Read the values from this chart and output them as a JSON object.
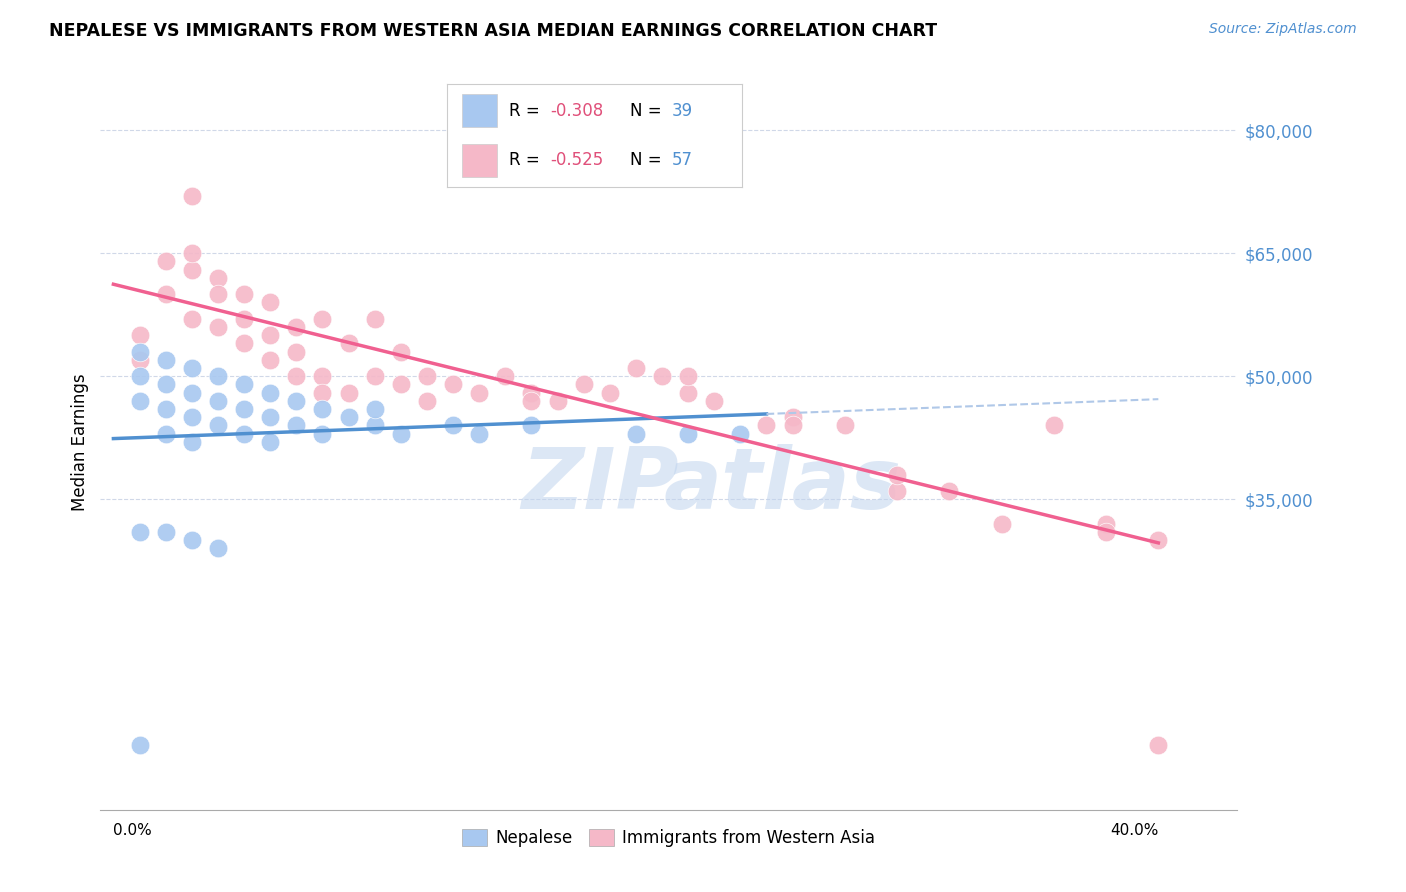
{
  "title": "NEPALESE VS IMMIGRANTS FROM WESTERN ASIA MEDIAN EARNINGS CORRELATION CHART",
  "source": "Source: ZipAtlas.com",
  "ylabel": "Median Earnings",
  "yticks": [
    35000,
    50000,
    65000,
    80000
  ],
  "ytick_labels": [
    "$35,000",
    "$50,000",
    "$65,000",
    "$80,000"
  ],
  "watermark_zip": "ZIP",
  "watermark_atlas": "atlas",
  "legend1_r": "-0.308",
  "legend1_n": "39",
  "legend2_r": "-0.525",
  "legend2_n": "57",
  "blue_color": "#a8c8f0",
  "pink_color": "#f5b8c8",
  "blue_line_color": "#5090d0",
  "pink_line_color": "#f06090",
  "dashed_color": "#b0c8e8",
  "nepalese_x": [
    0.001,
    0.001,
    0.001,
    0.002,
    0.002,
    0.002,
    0.002,
    0.003,
    0.003,
    0.003,
    0.003,
    0.004,
    0.004,
    0.004,
    0.005,
    0.005,
    0.005,
    0.006,
    0.006,
    0.006,
    0.007,
    0.007,
    0.008,
    0.008,
    0.009,
    0.01,
    0.01,
    0.011,
    0.013,
    0.014,
    0.016,
    0.02,
    0.022,
    0.024,
    0.001,
    0.002,
    0.003,
    0.004,
    0.001
  ],
  "nepalese_y": [
    53000,
    50000,
    47000,
    52000,
    49000,
    46000,
    43000,
    51000,
    48000,
    45000,
    42000,
    50000,
    47000,
    44000,
    49000,
    46000,
    43000,
    48000,
    45000,
    42000,
    47000,
    44000,
    46000,
    43000,
    45000,
    44000,
    46000,
    43000,
    44000,
    43000,
    44000,
    43000,
    43000,
    43000,
    31000,
    31000,
    30000,
    29000,
    5000
  ],
  "western_asia_x": [
    0.001,
    0.001,
    0.002,
    0.002,
    0.003,
    0.003,
    0.003,
    0.004,
    0.004,
    0.005,
    0.005,
    0.005,
    0.006,
    0.006,
    0.006,
    0.007,
    0.007,
    0.007,
    0.008,
    0.008,
    0.009,
    0.009,
    0.01,
    0.011,
    0.011,
    0.012,
    0.013,
    0.014,
    0.015,
    0.016,
    0.017,
    0.018,
    0.019,
    0.02,
    0.021,
    0.022,
    0.023,
    0.025,
    0.026,
    0.028,
    0.03,
    0.032,
    0.034,
    0.036,
    0.038,
    0.04,
    0.003,
    0.004,
    0.008,
    0.01,
    0.012,
    0.016,
    0.022,
    0.026,
    0.03,
    0.038,
    0.04
  ],
  "western_asia_y": [
    55000,
    52000,
    64000,
    60000,
    72000,
    63000,
    57000,
    62000,
    56000,
    60000,
    57000,
    54000,
    59000,
    55000,
    52000,
    56000,
    53000,
    50000,
    57000,
    50000,
    54000,
    48000,
    57000,
    53000,
    49000,
    50000,
    49000,
    48000,
    50000,
    48000,
    47000,
    49000,
    48000,
    51000,
    50000,
    48000,
    47000,
    44000,
    45000,
    44000,
    36000,
    36000,
    32000,
    44000,
    32000,
    30000,
    65000,
    60000,
    48000,
    50000,
    47000,
    47000,
    50000,
    44000,
    38000,
    31000,
    5000
  ],
  "xlim_min": -0.0005,
  "xlim_max": 0.043,
  "ylim_min": -3000,
  "ylim_max": 87000
}
